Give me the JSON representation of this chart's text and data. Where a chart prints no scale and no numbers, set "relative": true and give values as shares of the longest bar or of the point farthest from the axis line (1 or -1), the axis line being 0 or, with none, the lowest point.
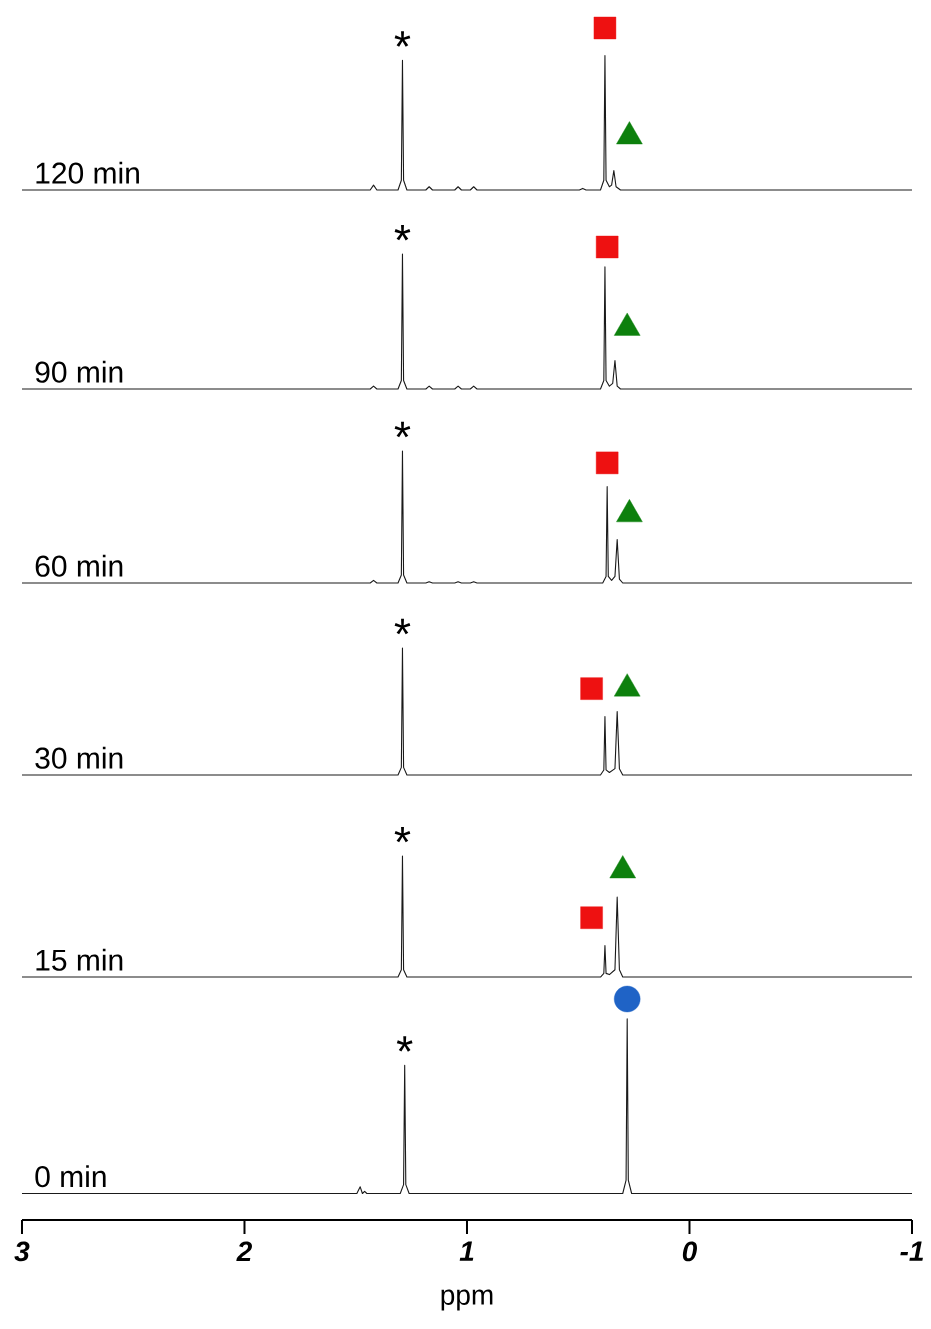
{
  "chart_data": [
    {
      "type": "line",
      "relative": true,
      "xlim": [
        3,
        -1
      ],
      "tick_labels": false,
      "annotations": [
        "120 min",
        "*"
      ],
      "series": [
        {
          "type": "line",
          "color": "#1a1a1a",
          "x": [
            3,
            1.435,
            1.42,
            1.405,
            1.31,
            1.295,
            1.29,
            1.285,
            1.27,
            1.185,
            1.17,
            1.155,
            1.055,
            1.04,
            1.025,
            0.985,
            0.97,
            0.955,
            0.495,
            0.48,
            0.465,
            0.4,
            0.385,
            0.38,
            0.375,
            0.36,
            0.35,
            0.34,
            0.33,
            0.31,
            -1
          ],
          "values": [
            0,
            0,
            0.03,
            0,
            0,
            0.06,
            0.8,
            0.06,
            0,
            0,
            0.02,
            0,
            0,
            0.02,
            0,
            0,
            0.02,
            0,
            0,
            0.01,
            0,
            0,
            0.06,
            0.83,
            0.06,
            0.02,
            0.03,
            0.12,
            0.02,
            0,
            0
          ]
        },
        {
          "type": "scatter",
          "marker": "square",
          "color": "#ee1111",
          "x": [
            0.38
          ],
          "values": [
            1
          ]
        },
        {
          "type": "scatter",
          "marker": "triangle",
          "color": "#0d800d",
          "x": [
            0.27
          ],
          "values": [
            0.33
          ]
        }
      ]
    },
    {
      "type": "line",
      "relative": true,
      "xlim": [
        3,
        -1
      ],
      "tick_labels": false,
      "annotations": [
        "90 min",
        "*"
      ],
      "series": [
        {
          "type": "line",
          "color": "#1a1a1a",
          "x": [
            3,
            1.435,
            1.42,
            1.405,
            1.31,
            1.295,
            1.29,
            1.285,
            1.27,
            1.185,
            1.17,
            1.155,
            1.055,
            1.04,
            1.025,
            0.985,
            0.97,
            0.955,
            0.4,
            0.385,
            0.38,
            0.375,
            0.36,
            0.345,
            0.335,
            0.325,
            0.31,
            -1
          ],
          "values": [
            0,
            0,
            0.02,
            0,
            0,
            0.06,
            0.95,
            0.06,
            0,
            0,
            0.02,
            0,
            0,
            0.02,
            0,
            0,
            0.02,
            0,
            0,
            0.06,
            0.86,
            0.06,
            0.02,
            0.04,
            0.2,
            0.02,
            0,
            0
          ]
        },
        {
          "type": "scatter",
          "marker": "square",
          "color": "#ee1111",
          "x": [
            0.37
          ],
          "values": [
            1
          ]
        },
        {
          "type": "scatter",
          "marker": "triangle",
          "color": "#0d800d",
          "x": [
            0.28
          ],
          "values": [
            0.43
          ]
        }
      ]
    },
    {
      "type": "line",
      "relative": true,
      "xlim": [
        3,
        -1
      ],
      "tick_labels": false,
      "annotations": [
        "60 min",
        "*"
      ],
      "series": [
        {
          "type": "line",
          "color": "#1a1a1a",
          "x": [
            3,
            1.435,
            1.42,
            1.405,
            1.31,
            1.295,
            1.29,
            1.285,
            1.27,
            1.185,
            1.17,
            1.155,
            1.055,
            1.04,
            1.025,
            0.985,
            0.97,
            0.955,
            0.39,
            0.375,
            0.37,
            0.365,
            0.35,
            0.335,
            0.325,
            0.315,
            0.3,
            -1
          ],
          "values": [
            0,
            0,
            0.02,
            0,
            0,
            0.06,
            1,
            0.06,
            0,
            0,
            0.01,
            0,
            0,
            0.01,
            0,
            0,
            0.01,
            0,
            0,
            0.05,
            0.73,
            0.05,
            0.02,
            0.05,
            0.33,
            0.03,
            0,
            0
          ]
        },
        {
          "type": "scatter",
          "marker": "square",
          "color": "#ee1111",
          "x": [
            0.37
          ],
          "values": [
            0.91
          ]
        },
        {
          "type": "scatter",
          "marker": "triangle",
          "color": "#0d800d",
          "x": [
            0.27
          ],
          "values": [
            0.52
          ]
        }
      ]
    },
    {
      "type": "line",
      "relative": true,
      "xlim": [
        3,
        -1
      ],
      "tick_labels": false,
      "annotations": [
        "30 min",
        "*"
      ],
      "series": [
        {
          "type": "line",
          "color": "#1a1a1a",
          "x": [
            3,
            1.31,
            1.295,
            1.29,
            1.285,
            1.27,
            0.4,
            0.385,
            0.38,
            0.375,
            0.36,
            0.335,
            0.325,
            0.315,
            0.3,
            -1
          ],
          "values": [
            0,
            0,
            0.06,
            1,
            0.06,
            0,
            0,
            0.04,
            0.46,
            0.04,
            0.02,
            0.05,
            0.5,
            0.05,
            0,
            0
          ]
        },
        {
          "type": "scatter",
          "marker": "square",
          "color": "#ee1111",
          "x": [
            0.44
          ],
          "values": [
            0.68
          ]
        },
        {
          "type": "scatter",
          "marker": "triangle",
          "color": "#0d800d",
          "x": [
            0.28
          ],
          "values": [
            0.68
          ]
        }
      ]
    },
    {
      "type": "line",
      "relative": true,
      "xlim": [
        3,
        -1
      ],
      "tick_labels": false,
      "annotations": [
        "15 min",
        "*"
      ],
      "series": [
        {
          "type": "line",
          "color": "#1a1a1a",
          "x": [
            3,
            1.31,
            1.295,
            1.29,
            1.285,
            1.27,
            0.4,
            0.385,
            0.38,
            0.375,
            0.36,
            0.335,
            0.325,
            0.315,
            0.3,
            -1
          ],
          "values": [
            0,
            0,
            0.06,
            1,
            0.06,
            0,
            0,
            0.03,
            0.26,
            0.03,
            0.02,
            0.06,
            0.66,
            0.06,
            0,
            0
          ]
        },
        {
          "type": "scatter",
          "marker": "square",
          "color": "#ee1111",
          "x": [
            0.44
          ],
          "values": [
            0.49
          ]
        },
        {
          "type": "scatter",
          "marker": "triangle",
          "color": "#0d800d",
          "x": [
            0.3
          ],
          "values": [
            0.88
          ]
        }
      ]
    },
    {
      "type": "line",
      "relative": true,
      "xlim": [
        3,
        -1
      ],
      "xticks": [
        3,
        2,
        1,
        0,
        -1
      ],
      "xlabel": "ppm",
      "tick_labels": "x",
      "annotations": [
        "0 min",
        "*"
      ],
      "series": [
        {
          "type": "line",
          "color": "#1a1a1a",
          "x": [
            3,
            1.495,
            1.48,
            1.47,
            1.46,
            1.45,
            1.3,
            1.285,
            1.28,
            1.275,
            1.26,
            0.3,
            0.285,
            0.28,
            0.275,
            0.26,
            -1
          ],
          "values": [
            0.12,
            0.12,
            0.15,
            0.12,
            0.13,
            0.12,
            0.12,
            0.16,
            0.7,
            0.16,
            0.12,
            0.12,
            0.18,
            0.91,
            0.18,
            0.12,
            0.12
          ]
        },
        {
          "type": "scatter",
          "marker": "circle",
          "color": "#1f63c6",
          "x": [
            0.28
          ],
          "values": [
            1
          ]
        }
      ]
    }
  ]
}
